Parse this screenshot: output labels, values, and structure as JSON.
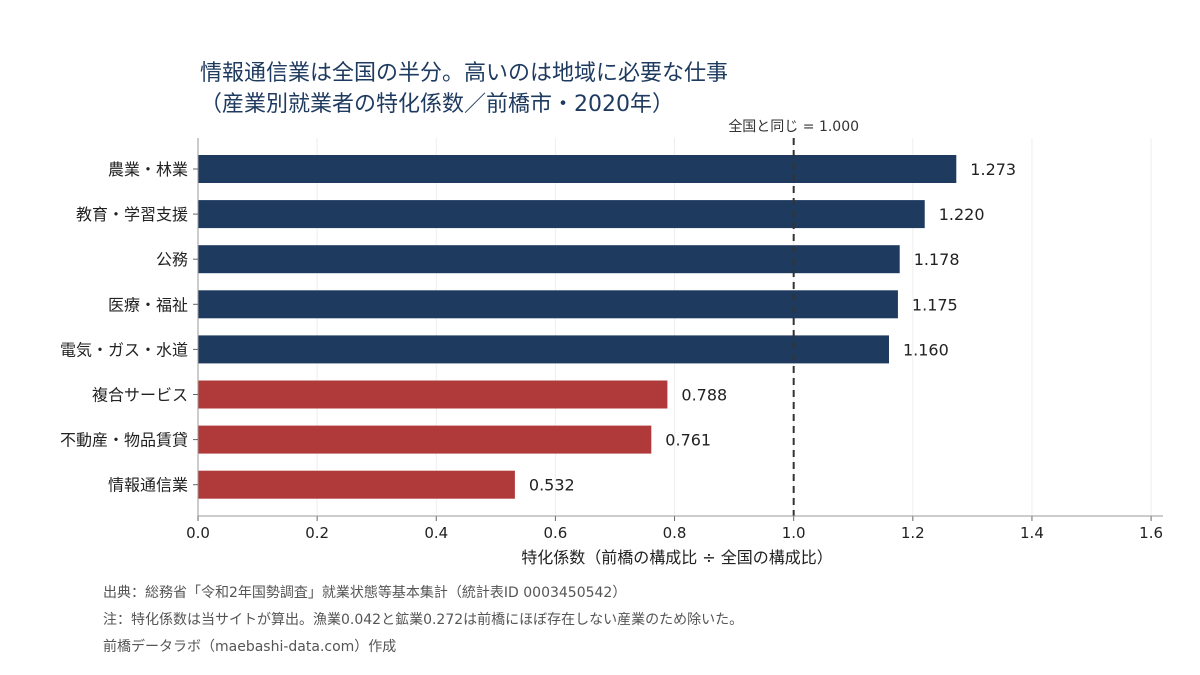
{
  "title": {
    "line1": "情報通信業は全国の半分。高いのは地域に必要な仕事",
    "line2": "（産業別就業者の特化係数／前橋市・2020年）"
  },
  "colors": {
    "high": "#1e3a5f",
    "low": "#b03a3a",
    "reference": "#333333",
    "grid": "#eeeeee",
    "axis": "#999999"
  },
  "chart_data": {
    "type": "bar",
    "orientation": "horizontal",
    "categories": [
      "農業・林業",
      "教育・学習支援",
      "公務",
      "医療・福祉",
      "電気・ガス・水道",
      "複合サービス",
      "不動産・物品賃貸",
      "情報通信業"
    ],
    "values": [
      1.273,
      1.22,
      1.178,
      1.175,
      1.16,
      0.788,
      0.761,
      0.532
    ],
    "value_labels": [
      "1.273",
      "1.220",
      "1.178",
      "1.175",
      "1.160",
      "0.788",
      "0.761",
      "0.532"
    ],
    "xlabel": "特化係数（前橋の構成比 ÷ 全国の構成比）",
    "xlim": [
      0,
      1.62
    ],
    "xticks": [
      0.0,
      0.2,
      0.4,
      0.6,
      0.8,
      1.0,
      1.2,
      1.4,
      1.6
    ],
    "xtick_labels": [
      "0.0",
      "0.2",
      "0.4",
      "0.6",
      "0.8",
      "1.0",
      "1.2",
      "1.4",
      "1.6"
    ],
    "reference_line": {
      "value": 1.0,
      "label": "全国と同じ = 1.000",
      "style": "dashed"
    },
    "grid": "vertical"
  },
  "notes": {
    "source": "出典：総務省「令和2年国勢調査」就業状態等基本集計（統計表ID 0003450542）",
    "note": "注：特化係数は当サイトが算出。漁業0.042と鉱業0.272は前橋にほぼ存在しない産業のため除いた。",
    "credit": "前橋データラボ（maebashi-data.com）作成"
  }
}
